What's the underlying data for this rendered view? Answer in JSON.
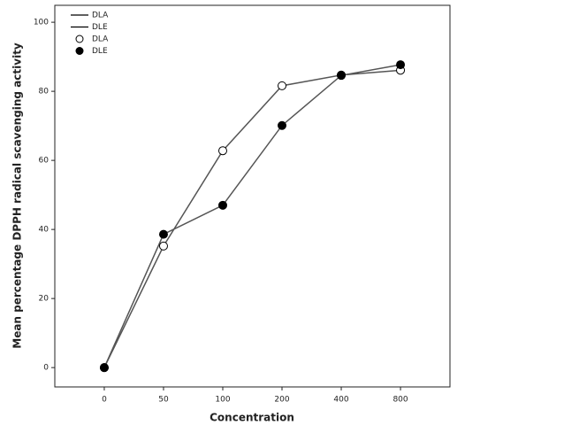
{
  "chart_data": {
    "type": "line",
    "x_label": "Concentration",
    "y_label": "Mean percentage DPPH radical scavenging activity",
    "categories": [
      "0",
      "50",
      "100",
      "200",
      "400",
      "800"
    ],
    "series": [
      {
        "name": "DLA",
        "color": "#555555",
        "marker": "open",
        "values": [
          0,
          35.2,
          62.8,
          81.6,
          84.7,
          86.1
        ]
      },
      {
        "name": "DLE",
        "color": "#555555",
        "marker": "filled",
        "values": [
          0,
          38.6,
          47.0,
          70.1,
          84.6,
          87.7
        ]
      }
    ],
    "ylim": [
      -5.6,
      104.9
    ],
    "yticks": [
      0,
      20,
      40,
      60,
      80,
      100
    ],
    "legend": "top-left"
  }
}
